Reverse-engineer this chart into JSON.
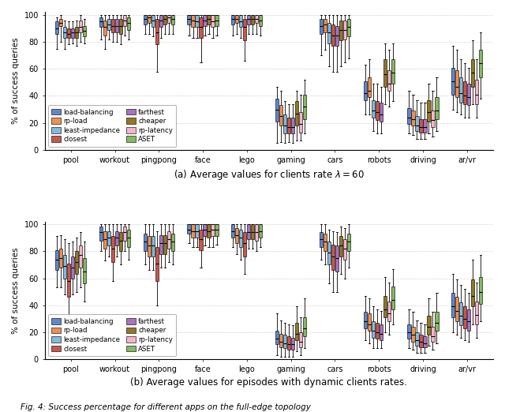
{
  "categories": [
    "pool",
    "workout",
    "pingpong",
    "face",
    "lego",
    "gaming",
    "cars",
    "robots",
    "driving",
    "ar/vr"
  ],
  "algorithms": [
    "load-balancing",
    "rp-load",
    "least-impedance",
    "closest",
    "farthest",
    "cheaper",
    "rp-latency",
    "ASET"
  ],
  "colors": [
    "#4472c4",
    "#ed7d31",
    "#70add4",
    "#c0392b",
    "#9b59b6",
    "#7f6000",
    "#f4a7c0",
    "#70ad47"
  ],
  "legend_labels": [
    "load-balancing",
    "rp-load",
    "least-impedance",
    "closest",
    "farthest",
    "cheaper",
    "rp-latency",
    "ASET"
  ],
  "subplot_a_title": "(a) Average values for clients rate $\\lambda = 60$",
  "subplot_b_title": "(b) Average values for episodes with dynamic clients rates.",
  "ylabel": "% of success queries",
  "fig_caption": "Fig. 4: Success percentage for different apps on the full-edge topology",
  "panel_a": {
    "pool": {
      "load-balancing": [
        75,
        86,
        90,
        95,
        98
      ],
      "rp-load": [
        80,
        92,
        94,
        97,
        100
      ],
      "least-impedance": [
        75,
        83,
        87,
        91,
        96
      ],
      "closest": [
        78,
        83,
        86,
        90,
        95
      ],
      "farthest": [
        79,
        83,
        87,
        90,
        95
      ],
      "cheaper": [
        77,
        83,
        87,
        91,
        96
      ],
      "rp-latency": [
        80,
        87,
        91,
        96,
        100
      ],
      "ASET": [
        79,
        84,
        88,
        92,
        97
      ]
    },
    "workout": {
      "load-balancing": [
        82,
        91,
        95,
        98,
        100
      ],
      "rp-load": [
        75,
        85,
        91,
        96,
        100
      ],
      "least-impedance": [
        82,
        89,
        93,
        97,
        100
      ],
      "closest": [
        80,
        87,
        92,
        97,
        100
      ],
      "farthest": [
        80,
        87,
        92,
        97,
        100
      ],
      "cheaper": [
        78,
        86,
        92,
        97,
        100
      ],
      "rp-latency": [
        85,
        92,
        96,
        100,
        100
      ],
      "ASET": [
        82,
        89,
        94,
        98,
        100
      ]
    },
    "pingpong": {
      "load-balancing": [
        86,
        93,
        97,
        100,
        100
      ],
      "rp-load": [
        86,
        94,
        98,
        100,
        100
      ],
      "least-impedance": [
        84,
        91,
        96,
        100,
        100
      ],
      "closest": [
        58,
        78,
        87,
        97,
        100
      ],
      "farthest": [
        83,
        91,
        96,
        100,
        100
      ],
      "cheaper": [
        86,
        93,
        97,
        100,
        100
      ],
      "rp-latency": [
        86,
        94,
        98,
        100,
        100
      ],
      "ASET": [
        86,
        93,
        97,
        100,
        100
      ]
    },
    "face": {
      "load-balancing": [
        85,
        93,
        97,
        100,
        100
      ],
      "rp-load": [
        83,
        91,
        96,
        100,
        100
      ],
      "least-impedance": [
        83,
        91,
        95,
        100,
        100
      ],
      "closest": [
        65,
        83,
        91,
        98,
        100
      ],
      "farthest": [
        85,
        92,
        96,
        100,
        100
      ],
      "cheaper": [
        86,
        93,
        97,
        100,
        100
      ],
      "rp-latency": [
        83,
        91,
        95,
        100,
        100
      ],
      "ASET": [
        85,
        92,
        96,
        100,
        100
      ]
    },
    "lego": {
      "load-balancing": [
        85,
        93,
        97,
        100,
        100
      ],
      "rp-load": [
        86,
        94,
        97,
        100,
        100
      ],
      "least-impedance": [
        83,
        91,
        95,
        100,
        100
      ],
      "closest": [
        66,
        81,
        91,
        97,
        100
      ],
      "farthest": [
        86,
        93,
        97,
        100,
        100
      ],
      "cheaper": [
        86,
        93,
        97,
        100,
        100
      ],
      "rp-latency": [
        86,
        94,
        97,
        100,
        100
      ],
      "ASET": [
        85,
        92,
        96,
        100,
        100
      ]
    },
    "gaming": {
      "load-balancing": [
        5,
        21,
        30,
        38,
        47
      ],
      "rp-load": [
        6,
        18,
        25,
        33,
        44
      ],
      "least-impedance": [
        5,
        12,
        18,
        26,
        36
      ],
      "closest": [
        6,
        12,
        17,
        24,
        34
      ],
      "farthest": [
        5,
        12,
        17,
        24,
        34
      ],
      "cheaper": [
        7,
        18,
        27,
        36,
        44
      ],
      "rp-latency": [
        7,
        13,
        19,
        28,
        41
      ],
      "ASET": [
        12,
        23,
        32,
        41,
        52
      ]
    },
    "cars": {
      "load-balancing": [
        70,
        86,
        92,
        97,
        100
      ],
      "rp-load": [
        74,
        87,
        93,
        97,
        100
      ],
      "least-impedance": [
        62,
        79,
        87,
        94,
        100
      ],
      "closest": [
        58,
        77,
        85,
        93,
        100
      ],
      "farthest": [
        58,
        77,
        85,
        92,
        100
      ],
      "cheaper": [
        62,
        81,
        89,
        96,
        100
      ],
      "rp-latency": [
        65,
        82,
        89,
        96,
        100
      ],
      "ASET": [
        68,
        84,
        91,
        97,
        100
      ]
    },
    "robots": {
      "load-balancing": [
        26,
        37,
        42,
        51,
        63
      ],
      "rp-load": [
        26,
        39,
        44,
        54,
        67
      ],
      "least-impedance": [
        14,
        24,
        29,
        37,
        49
      ],
      "closest": [
        12,
        22,
        28,
        36,
        49
      ],
      "farthest": [
        12,
        21,
        26,
        35,
        47
      ],
      "cheaper": [
        34,
        47,
        56,
        67,
        79
      ],
      "rp-latency": [
        32,
        44,
        49,
        59,
        74
      ],
      "ASET": [
        36,
        49,
        57,
        67,
        79
      ]
    },
    "driving": {
      "load-balancing": [
        12,
        19,
        24,
        31,
        44
      ],
      "rp-load": [
        11,
        18,
        23,
        29,
        41
      ],
      "least-impedance": [
        8,
        14,
        18,
        25,
        37
      ],
      "closest": [
        8,
        13,
        17,
        23,
        35
      ],
      "farthest": [
        8,
        13,
        17,
        23,
        35
      ],
      "cheaper": [
        12,
        21,
        28,
        37,
        49
      ],
      "rp-latency": [
        10,
        17,
        22,
        29,
        44
      ],
      "ASET": [
        14,
        23,
        29,
        39,
        54
      ]
    },
    "ar/vr": {
      "load-balancing": [
        30,
        41,
        51,
        61,
        77
      ],
      "rp-load": [
        28,
        39,
        47,
        59,
        74
      ],
      "least-impedance": [
        26,
        35,
        42,
        54,
        67
      ],
      "closest": [
        24,
        34,
        40,
        51,
        64
      ],
      "farthest": [
        24,
        33,
        39,
        49,
        61
      ],
      "cheaper": [
        34,
        47,
        57,
        67,
        81
      ],
      "rp-latency": [
        24,
        34,
        41,
        52,
        67
      ],
      "ASET": [
        38,
        54,
        64,
        74,
        87
      ]
    }
  },
  "panel_b": {
    "pool": {
      "load-balancing": [
        53,
        66,
        74,
        81,
        91
      ],
      "rp-load": [
        53,
        68,
        75,
        82,
        92
      ],
      "least-impedance": [
        48,
        60,
        69,
        77,
        89
      ],
      "closest": [
        26,
        46,
        58,
        71,
        86
      ],
      "farthest": [
        48,
        60,
        68,
        76,
        87
      ],
      "cheaper": [
        50,
        63,
        72,
        80,
        90
      ],
      "rp-latency": [
        53,
        68,
        77,
        84,
        94
      ],
      "ASET": [
        43,
        56,
        65,
        75,
        87
      ]
    },
    "workout": {
      "load-balancing": [
        80,
        88,
        94,
        98,
        100
      ],
      "rp-load": [
        73,
        82,
        89,
        95,
        100
      ],
      "least-impedance": [
        76,
        84,
        90,
        95,
        100
      ],
      "closest": [
        58,
        72,
        82,
        91,
        100
      ],
      "farthest": [
        76,
        84,
        90,
        95,
        100
      ],
      "cheaper": [
        70,
        80,
        88,
        94,
        100
      ],
      "rp-latency": [
        80,
        88,
        94,
        98,
        100
      ],
      "ASET": [
        74,
        83,
        90,
        96,
        100
      ]
    },
    "pingpong": {
      "load-balancing": [
        70,
        80,
        87,
        93,
        100
      ],
      "rp-load": [
        66,
        76,
        84,
        91,
        100
      ],
      "least-impedance": [
        66,
        76,
        84,
        91,
        100
      ],
      "closest": [
        40,
        58,
        71,
        83,
        95
      ],
      "farthest": [
        68,
        78,
        86,
        92,
        100
      ],
      "cheaper": [
        68,
        78,
        86,
        92,
        100
      ],
      "rp-latency": [
        72,
        82,
        89,
        95,
        100
      ],
      "ASET": [
        70,
        80,
        87,
        93,
        100
      ]
    },
    "face": {
      "load-balancing": [
        86,
        93,
        96,
        100,
        100
      ],
      "rp-load": [
        83,
        90,
        95,
        100,
        100
      ],
      "least-impedance": [
        83,
        90,
        95,
        100,
        100
      ],
      "closest": [
        68,
        81,
        89,
        96,
        100
      ],
      "farthest": [
        84,
        91,
        96,
        100,
        100
      ],
      "cheaper": [
        83,
        90,
        95,
        100,
        100
      ],
      "rp-latency": [
        83,
        91,
        96,
        100,
        100
      ],
      "ASET": [
        85,
        91,
        96,
        100,
        100
      ]
    },
    "lego": {
      "load-balancing": [
        83,
        90,
        95,
        100,
        100
      ],
      "rp-load": [
        78,
        86,
        92,
        97,
        100
      ],
      "least-impedance": [
        74,
        83,
        90,
        96,
        100
      ],
      "closest": [
        63,
        76,
        86,
        94,
        100
      ],
      "farthest": [
        82,
        89,
        94,
        100,
        100
      ],
      "cheaper": [
        82,
        89,
        94,
        100,
        100
      ],
      "rp-latency": [
        80,
        88,
        94,
        100,
        100
      ],
      "ASET": [
        83,
        90,
        95,
        100,
        100
      ]
    },
    "gaming": {
      "load-balancing": [
        3,
        11,
        15,
        21,
        34
      ],
      "rp-load": [
        2,
        9,
        13,
        19,
        29
      ],
      "least-impedance": [
        2,
        8,
        12,
        18,
        27
      ],
      "closest": [
        2,
        7,
        11,
        17,
        26
      ],
      "farthest": [
        2,
        7,
        11,
        16,
        25
      ],
      "cheaper": [
        6,
        14,
        19,
        27,
        39
      ],
      "rp-latency": [
        3,
        9,
        13,
        20,
        31
      ],
      "ASET": [
        8,
        17,
        23,
        31,
        45
      ]
    },
    "cars": {
      "load-balancing": [
        74,
        83,
        89,
        94,
        100
      ],
      "rp-load": [
        70,
        80,
        87,
        93,
        100
      ],
      "least-impedance": [
        56,
        70,
        79,
        87,
        96
      ],
      "closest": [
        50,
        66,
        76,
        85,
        95
      ],
      "farthest": [
        50,
        65,
        75,
        84,
        94
      ],
      "cheaper": [
        63,
        76,
        84,
        91,
        98
      ],
      "rp-latency": [
        60,
        74,
        82,
        89,
        97
      ],
      "ASET": [
        68,
        80,
        87,
        93,
        100
      ]
    },
    "robots": {
      "load-balancing": [
        14,
        23,
        28,
        35,
        47
      ],
      "rp-load": [
        12,
        21,
        26,
        34,
        45
      ],
      "least-impedance": [
        8,
        16,
        21,
        28,
        39
      ],
      "closest": [
        8,
        15,
        20,
        27,
        37
      ],
      "farthest": [
        8,
        14,
        19,
        26,
        36
      ],
      "cheaper": [
        20,
        31,
        37,
        47,
        61
      ],
      "rp-latency": [
        18,
        28,
        34,
        43,
        57
      ],
      "ASET": [
        26,
        37,
        44,
        54,
        67
      ]
    },
    "driving": {
      "load-balancing": [
        8,
        15,
        20,
        26,
        37
      ],
      "rp-load": [
        7,
        13,
        18,
        24,
        35
      ],
      "least-impedance": [
        5,
        10,
        14,
        20,
        29
      ],
      "closest": [
        5,
        9,
        13,
        18,
        27
      ],
      "farthest": [
        5,
        9,
        12,
        17,
        26
      ],
      "cheaper": [
        10,
        18,
        24,
        32,
        45
      ],
      "rp-latency": [
        7,
        13,
        17,
        24,
        35
      ],
      "ASET": [
        12,
        21,
        27,
        35,
        49
      ]
    },
    "ar/vr": {
      "load-balancing": [
        20,
        31,
        39,
        49,
        63
      ],
      "rp-load": [
        18,
        28,
        36,
        46,
        59
      ],
      "least-impedance": [
        16,
        25,
        32,
        42,
        55
      ],
      "closest": [
        14,
        23,
        30,
        39,
        52
      ],
      "farthest": [
        13,
        21,
        28,
        37,
        49
      ],
      "cheaper": [
        26,
        39,
        47,
        59,
        74
      ],
      "rp-latency": [
        16,
        26,
        33,
        43,
        57
      ],
      "ASET": [
        28,
        41,
        50,
        61,
        77
      ]
    }
  }
}
